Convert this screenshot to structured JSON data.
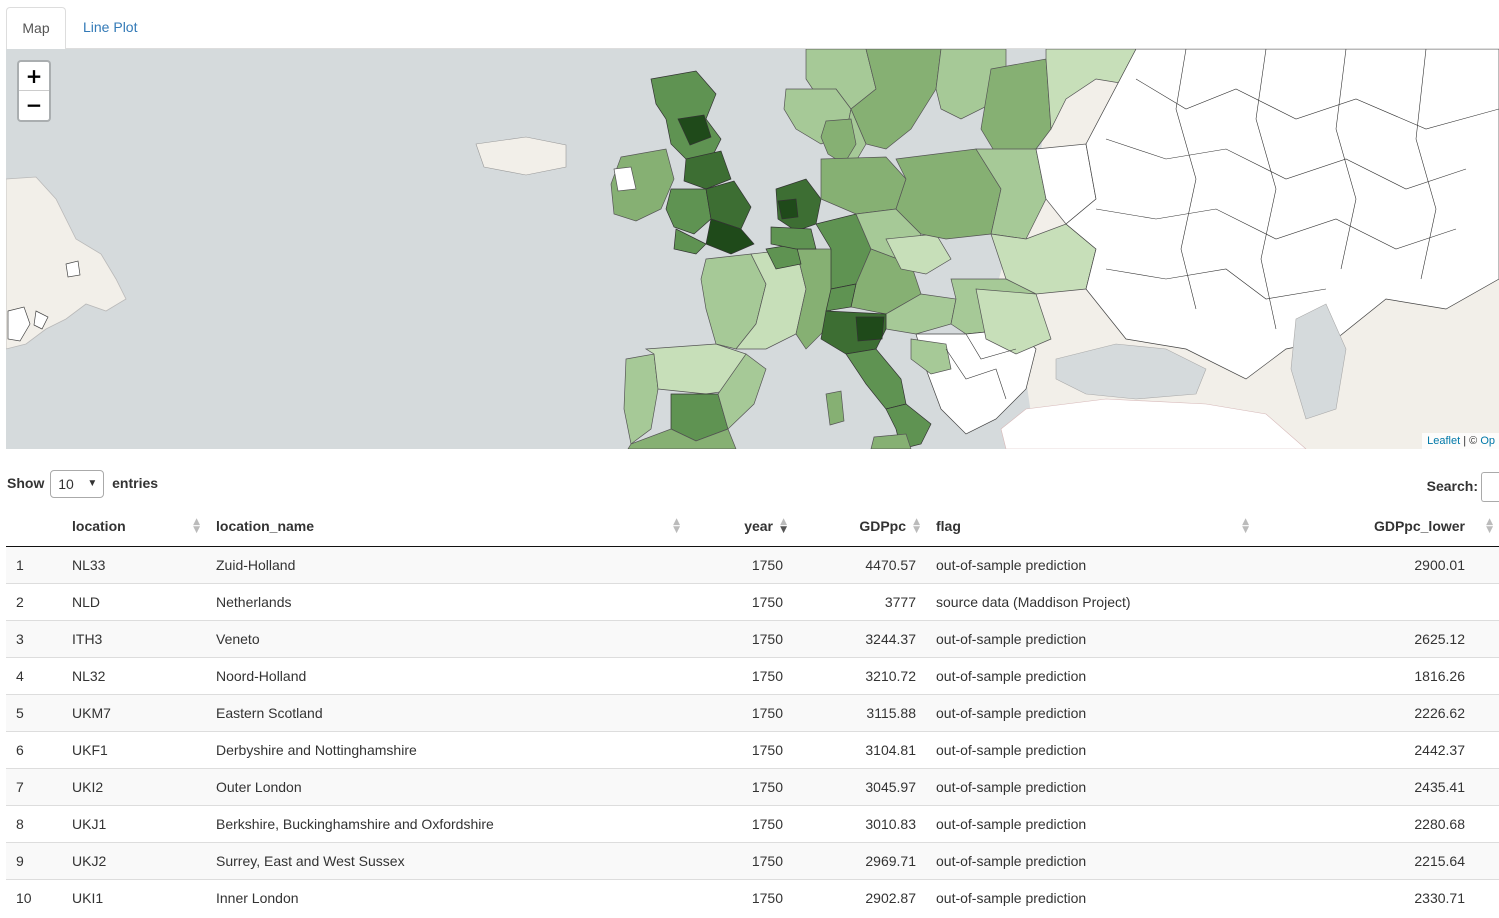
{
  "tabs": [
    {
      "label": "Map",
      "active": true
    },
    {
      "label": "Line Plot",
      "active": false
    }
  ],
  "map": {
    "zoom_in_label": "+",
    "zoom_out_label": "−",
    "attribution": {
      "leaflet": "Leaflet",
      "separator": " | © ",
      "osm": "Op"
    },
    "colors": {
      "ocean": "#d5dadc",
      "land_base": "#f2efe9",
      "no_data": "#ffffff",
      "green_1": "#c7dfb9",
      "green_2": "#a6c997",
      "green_3": "#86b073",
      "green_4": "#5f9352",
      "green_5": "#3d6e33",
      "green_6": "#1f4a1a"
    }
  },
  "controls": {
    "show_label": "Show",
    "entries_value": "10",
    "entries_label": "entries",
    "search_label": "Search:"
  },
  "table": {
    "columns": [
      {
        "key": "index",
        "label": ""
      },
      {
        "key": "location",
        "label": "location"
      },
      {
        "key": "location_name",
        "label": "location_name"
      },
      {
        "key": "year",
        "label": "year"
      },
      {
        "key": "GDPpc",
        "label": "GDPpc"
      },
      {
        "key": "flag",
        "label": "flag"
      },
      {
        "key": "GDPpc_lower",
        "label": "GDPpc_lower"
      }
    ],
    "rows": [
      {
        "index": "1",
        "location": "NL33",
        "location_name": "Zuid-Holland",
        "year": "1750",
        "GDPpc": "4470.57",
        "flag": "out-of-sample prediction",
        "GDPpc_lower": "2900.01"
      },
      {
        "index": "2",
        "location": "NLD",
        "location_name": "Netherlands",
        "year": "1750",
        "GDPpc": "3777",
        "flag": "source data (Maddison Project)",
        "GDPpc_lower": ""
      },
      {
        "index": "3",
        "location": "ITH3",
        "location_name": "Veneto",
        "year": "1750",
        "GDPpc": "3244.37",
        "flag": "out-of-sample prediction",
        "GDPpc_lower": "2625.12"
      },
      {
        "index": "4",
        "location": "NL32",
        "location_name": "Noord-Holland",
        "year": "1750",
        "GDPpc": "3210.72",
        "flag": "out-of-sample prediction",
        "GDPpc_lower": "1816.26"
      },
      {
        "index": "5",
        "location": "UKM7",
        "location_name": "Eastern Scotland",
        "year": "1750",
        "GDPpc": "3115.88",
        "flag": "out-of-sample prediction",
        "GDPpc_lower": "2226.62"
      },
      {
        "index": "6",
        "location": "UKF1",
        "location_name": "Derbyshire and Nottinghamshire",
        "year": "1750",
        "GDPpc": "3104.81",
        "flag": "out-of-sample prediction",
        "GDPpc_lower": "2442.37"
      },
      {
        "index": "7",
        "location": "UKI2",
        "location_name": "Outer London",
        "year": "1750",
        "GDPpc": "3045.97",
        "flag": "out-of-sample prediction",
        "GDPpc_lower": "2435.41"
      },
      {
        "index": "8",
        "location": "UKJ1",
        "location_name": "Berkshire, Buckinghamshire and Oxfordshire",
        "year": "1750",
        "GDPpc": "3010.83",
        "flag": "out-of-sample prediction",
        "GDPpc_lower": "2280.68"
      },
      {
        "index": "9",
        "location": "UKJ2",
        "location_name": "Surrey, East and West Sussex",
        "year": "1750",
        "GDPpc": "2969.71",
        "flag": "out-of-sample prediction",
        "GDPpc_lower": "2215.64"
      },
      {
        "index": "10",
        "location": "UKI1",
        "location_name": "Inner London",
        "year": "1750",
        "GDPpc": "2902.87",
        "flag": "out-of-sample prediction",
        "GDPpc_lower": "2330.71"
      }
    ]
  }
}
